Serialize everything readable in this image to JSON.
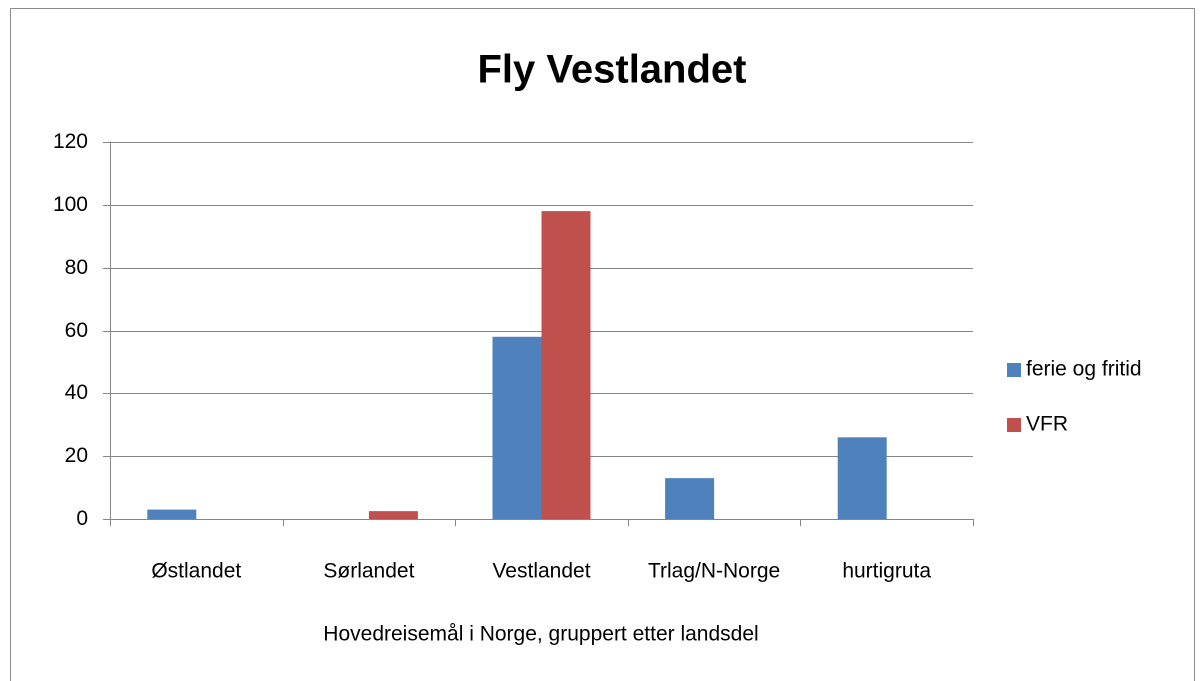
{
  "chart_data": {
    "type": "bar",
    "title": "Fly Vestlandet",
    "x_label": "Hovedreisemål i Norge, gruppert etter landsdel",
    "categories": [
      "Østlandet",
      "Sørlandet",
      "Vestlandet",
      "Trlag/N-Norge",
      "hurtigruta"
    ],
    "series": [
      {
        "name": "ferie og fritid",
        "color": "#4f81bd",
        "values": [
          3,
          0,
          58,
          13,
          26
        ]
      },
      {
        "name": "VFR",
        "color": "#c0504d",
        "values": [
          0,
          2.5,
          98,
          0,
          0
        ]
      }
    ],
    "ylim": [
      0,
      120
    ],
    "yticks": [
      0,
      20,
      40,
      60,
      80,
      100,
      120
    ],
    "grid": true,
    "legend": "right"
  }
}
